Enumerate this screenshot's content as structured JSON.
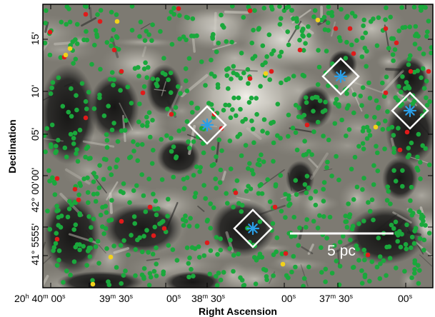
{
  "axes": {
    "xlabel": "Right Ascension",
    "ylabel": "Declination",
    "x_ticks": [
      {
        "text": "20h 40m 00s"
      },
      {
        "text": "39m 30s"
      },
      {
        "text": "00s"
      },
      {
        "text": "38m 30s"
      },
      {
        "text": "00s"
      },
      {
        "text": "37m 30s"
      },
      {
        "text": "00s"
      }
    ],
    "y_ticks": [
      {
        "text": "15'"
      },
      {
        "text": "10'"
      },
      {
        "text": "05'"
      },
      {
        "text": "00'"
      },
      {
        "text": "42° 00'"
      },
      {
        "text": "55'"
      },
      {
        "text": "41° 55'"
      }
    ]
  },
  "scale_bar": {
    "label": "5 pc"
  },
  "colors": {
    "green_source": "#1aa83c",
    "red_source": "#e01a1a",
    "yellow_source": "#f2d21a",
    "blue_star": "#2a9fe8",
    "marker_box": "#ffffff",
    "nebula_bright": "#d8d6cf",
    "nebula_dark": "#0b0b0b"
  },
  "markers": [
    {
      "name": "massive-star-1"
    },
    {
      "name": "massive-star-2"
    },
    {
      "name": "massive-star-3"
    },
    {
      "name": "massive-star-4"
    }
  ]
}
